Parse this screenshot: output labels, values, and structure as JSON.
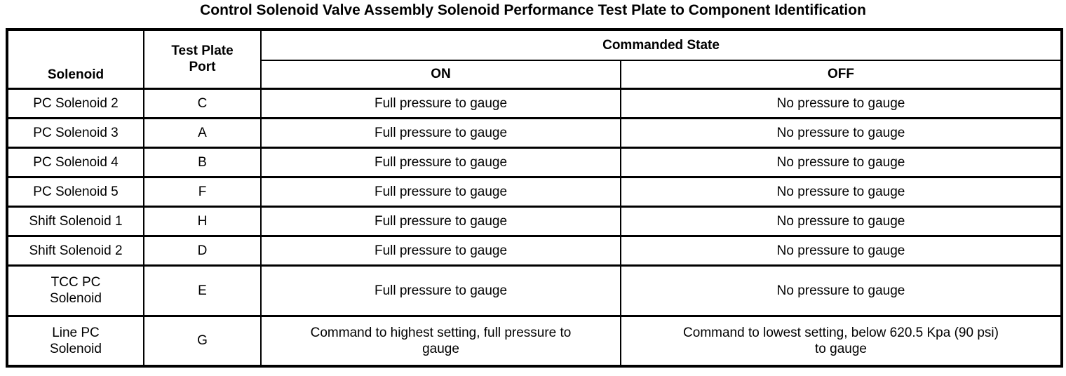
{
  "title": "Control Solenoid Valve Assembly Solenoid Performance Test Plate to Component Identification",
  "table": {
    "headers": {
      "solenoid": "Solenoid",
      "test_plate_port": "Test Plate\nPort",
      "commanded_state": "Commanded State",
      "on": "ON",
      "off": "OFF"
    },
    "rows": [
      {
        "solenoid": "PC Solenoid 2",
        "port": "C",
        "on": "Full pressure to gauge",
        "off": "No pressure to gauge"
      },
      {
        "solenoid": "PC Solenoid 3",
        "port": "A",
        "on": "Full pressure to gauge",
        "off": "No pressure to gauge"
      },
      {
        "solenoid": "PC Solenoid 4",
        "port": "B",
        "on": "Full pressure to gauge",
        "off": "No pressure to gauge"
      },
      {
        "solenoid": "PC Solenoid 5",
        "port": "F",
        "on": "Full pressure to gauge",
        "off": "No pressure to gauge"
      },
      {
        "solenoid": "Shift Solenoid 1",
        "port": "H",
        "on": "Full pressure to gauge",
        "off": "No pressure to gauge"
      },
      {
        "solenoid": "Shift Solenoid 2",
        "port": "D",
        "on": "Full pressure to gauge",
        "off": "No pressure to gauge"
      },
      {
        "solenoid": "TCC PC\nSolenoid",
        "port": "E",
        "on": "Full pressure to gauge",
        "off": "No pressure to gauge"
      },
      {
        "solenoid": "Line PC\nSolenoid",
        "port": "G",
        "on": "Command to highest setting, full pressure to\ngauge",
        "off": "Command to lowest setting, below 620.5 Kpa (90 psi)\nto gauge"
      }
    ]
  },
  "colors": {
    "text": "#000000",
    "border": "#000000",
    "background": "#ffffff"
  }
}
